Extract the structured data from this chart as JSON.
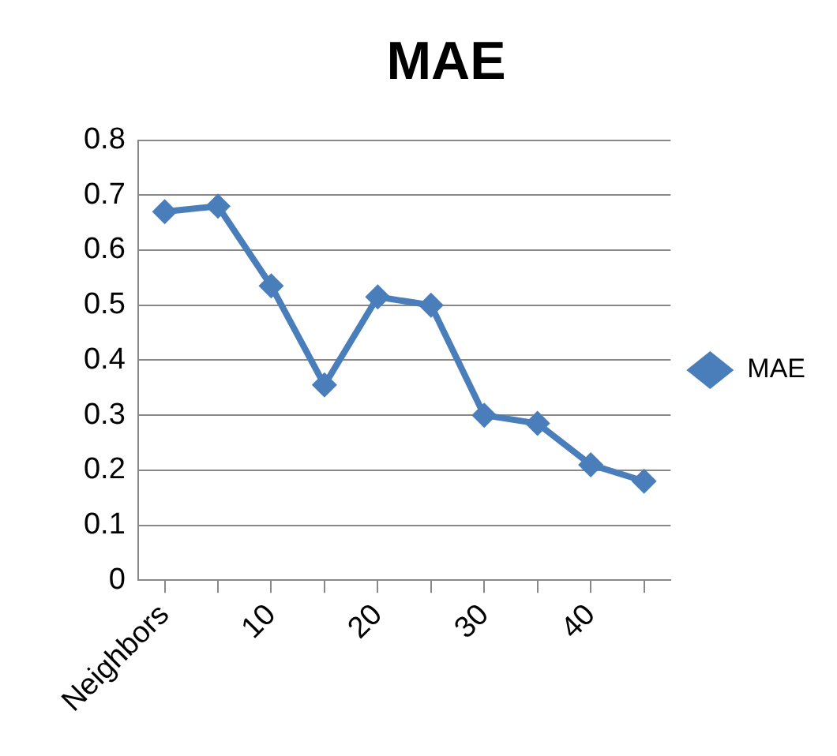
{
  "chart_data": {
    "type": "line",
    "title": "MAE",
    "categories": [
      "Neighbors",
      null,
      "10",
      null,
      "20",
      null,
      "30",
      null,
      "40",
      null
    ],
    "series": [
      {
        "name": "MAE",
        "color": "#4a7ebb",
        "values": [
          0.67,
          0.68,
          0.535,
          0.355,
          0.515,
          0.5,
          0.3,
          0.285,
          0.21,
          0.18
        ]
      }
    ],
    "ylim": [
      0,
      0.8
    ],
    "yticks": [
      {
        "value": 0,
        "label": "0"
      },
      0.1,
      0.2,
      0.3,
      0.4,
      0.5,
      0.6,
      0.7,
      0.8
    ],
    "grid": "y",
    "legend": "right",
    "marker": "diamond",
    "line_style": "solid"
  }
}
